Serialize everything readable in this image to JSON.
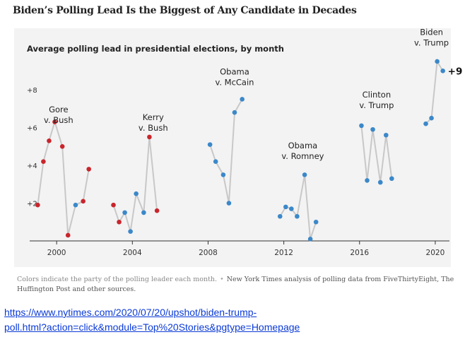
{
  "headline": "Biden’s Polling Lead Is the Biggest of Any Candidate in Decades",
  "footnote": {
    "note": "Colors indicate the party of the polling leader each month.",
    "separator": "•",
    "source": "New York Times analysis of polling data from FiveThirtyEight, The Huffington Post and other sources."
  },
  "link": {
    "line1": "https://www.nytimes.com/2020/07/20/upshot/biden-trump-",
    "line2": "poll.html?action=click&module=Top%20Stories&pgtype=Homepage"
  },
  "colors": {
    "democrat": "#3b88c9",
    "republican": "#c9252c",
    "line": "#c8c8c8"
  },
  "chart_data": {
    "type": "line",
    "title": "Average polling lead in presidential elections, by month",
    "xlabel": "",
    "ylabel": "",
    "xlim": [
      1998.8,
      2020.6
    ],
    "ylim": [
      0,
      9.2
    ],
    "x_ticks": [
      2000,
      2004,
      2008,
      2012,
      2016,
      2020
    ],
    "y_ticks": [
      2,
      4,
      6,
      8
    ],
    "y_tick_labels": [
      "+2",
      "+4",
      "+6",
      "+8"
    ],
    "grid": false,
    "series": [
      {
        "name": "Gore v. Bush",
        "label_lines": [
          "Gore",
          "v. Bush"
        ],
        "label_at": [
          2000.1,
          6.8
        ],
        "points": [
          {
            "x": 1999.0,
            "y": 1.9,
            "party": "R"
          },
          {
            "x": 1999.3,
            "y": 4.2,
            "party": "R"
          },
          {
            "x": 1999.6,
            "y": 5.3,
            "party": "R"
          },
          {
            "x": 1999.9,
            "y": 6.3,
            "party": "R"
          },
          {
            "x": 2000.3,
            "y": 5.0,
            "party": "R"
          },
          {
            "x": 2000.6,
            "y": 0.3,
            "party": "R"
          },
          {
            "x": 2001.0,
            "y": 1.9,
            "party": "D"
          },
          {
            "x": 2001.4,
            "y": 2.1,
            "party": "R"
          },
          {
            "x": 2001.7,
            "y": 3.8,
            "party": "R"
          }
        ]
      },
      {
        "name": "Kerry v. Bush",
        "label_lines": [
          "Kerry",
          "v. Bush"
        ],
        "label_at": [
          2005.1,
          6.4
        ],
        "points": [
          {
            "x": 2003.0,
            "y": 1.9,
            "party": "R"
          },
          {
            "x": 2003.3,
            "y": 1.0,
            "party": "R"
          },
          {
            "x": 2003.6,
            "y": 1.5,
            "party": "D"
          },
          {
            "x": 2003.9,
            "y": 0.5,
            "party": "D"
          },
          {
            "x": 2004.2,
            "y": 2.5,
            "party": "D"
          },
          {
            "x": 2004.6,
            "y": 1.5,
            "party": "D"
          },
          {
            "x": 2004.9,
            "y": 5.5,
            "party": "R"
          },
          {
            "x": 2005.3,
            "y": 1.6,
            "party": "R"
          }
        ]
      },
      {
        "name": "Obama v. McCain",
        "label_lines": [
          "Obama",
          "v. McCain"
        ],
        "label_at": [
          2009.4,
          8.8
        ],
        "points": [
          {
            "x": 2008.1,
            "y": 5.1,
            "party": "D"
          },
          {
            "x": 2008.4,
            "y": 4.2,
            "party": "D"
          },
          {
            "x": 2008.8,
            "y": 3.5,
            "party": "D"
          },
          {
            "x": 2009.1,
            "y": 2.0,
            "party": "D"
          },
          {
            "x": 2009.4,
            "y": 6.8,
            "party": "D"
          },
          {
            "x": 2009.8,
            "y": 7.5,
            "party": "D"
          }
        ]
      },
      {
        "name": "Obama v. Romney",
        "label_lines": [
          "Obama",
          "v. Romney"
        ],
        "label_at": [
          2013.0,
          4.9
        ],
        "points": [
          {
            "x": 2011.8,
            "y": 1.3,
            "party": "D"
          },
          {
            "x": 2012.1,
            "y": 1.8,
            "party": "D"
          },
          {
            "x": 2012.4,
            "y": 1.7,
            "party": "D"
          },
          {
            "x": 2012.7,
            "y": 1.3,
            "party": "D"
          },
          {
            "x": 2013.1,
            "y": 3.5,
            "party": "D"
          },
          {
            "x": 2013.4,
            "y": 0.1,
            "party": "D"
          },
          {
            "x": 2013.7,
            "y": 1.0,
            "party": "D"
          }
        ]
      },
      {
        "name": "Clinton v. Trump",
        "label_lines": [
          "Clinton",
          "v. Trump"
        ],
        "label_at": [
          2016.9,
          7.6
        ],
        "points": [
          {
            "x": 2016.1,
            "y": 6.1,
            "party": "D"
          },
          {
            "x": 2016.4,
            "y": 3.2,
            "party": "D"
          },
          {
            "x": 2016.7,
            "y": 5.9,
            "party": "D"
          },
          {
            "x": 2017.1,
            "y": 3.1,
            "party": "D"
          },
          {
            "x": 2017.4,
            "y": 5.6,
            "party": "D"
          },
          {
            "x": 2017.7,
            "y": 3.3,
            "party": "D"
          }
        ]
      },
      {
        "name": "Biden v. Trump",
        "label_lines": [
          "Biden",
          "v. Trump"
        ],
        "label_at": [
          2019.8,
          10.9
        ],
        "points": [
          {
            "x": 2019.5,
            "y": 6.2,
            "party": "D"
          },
          {
            "x": 2019.8,
            "y": 6.5,
            "party": "D"
          },
          {
            "x": 2020.1,
            "y": 9.5,
            "party": "D"
          },
          {
            "x": 2020.4,
            "y": 9.0,
            "party": "D"
          }
        ]
      }
    ],
    "annotations": [
      {
        "text": "+9",
        "x": 2020.4,
        "y": 9.0
      }
    ]
  }
}
